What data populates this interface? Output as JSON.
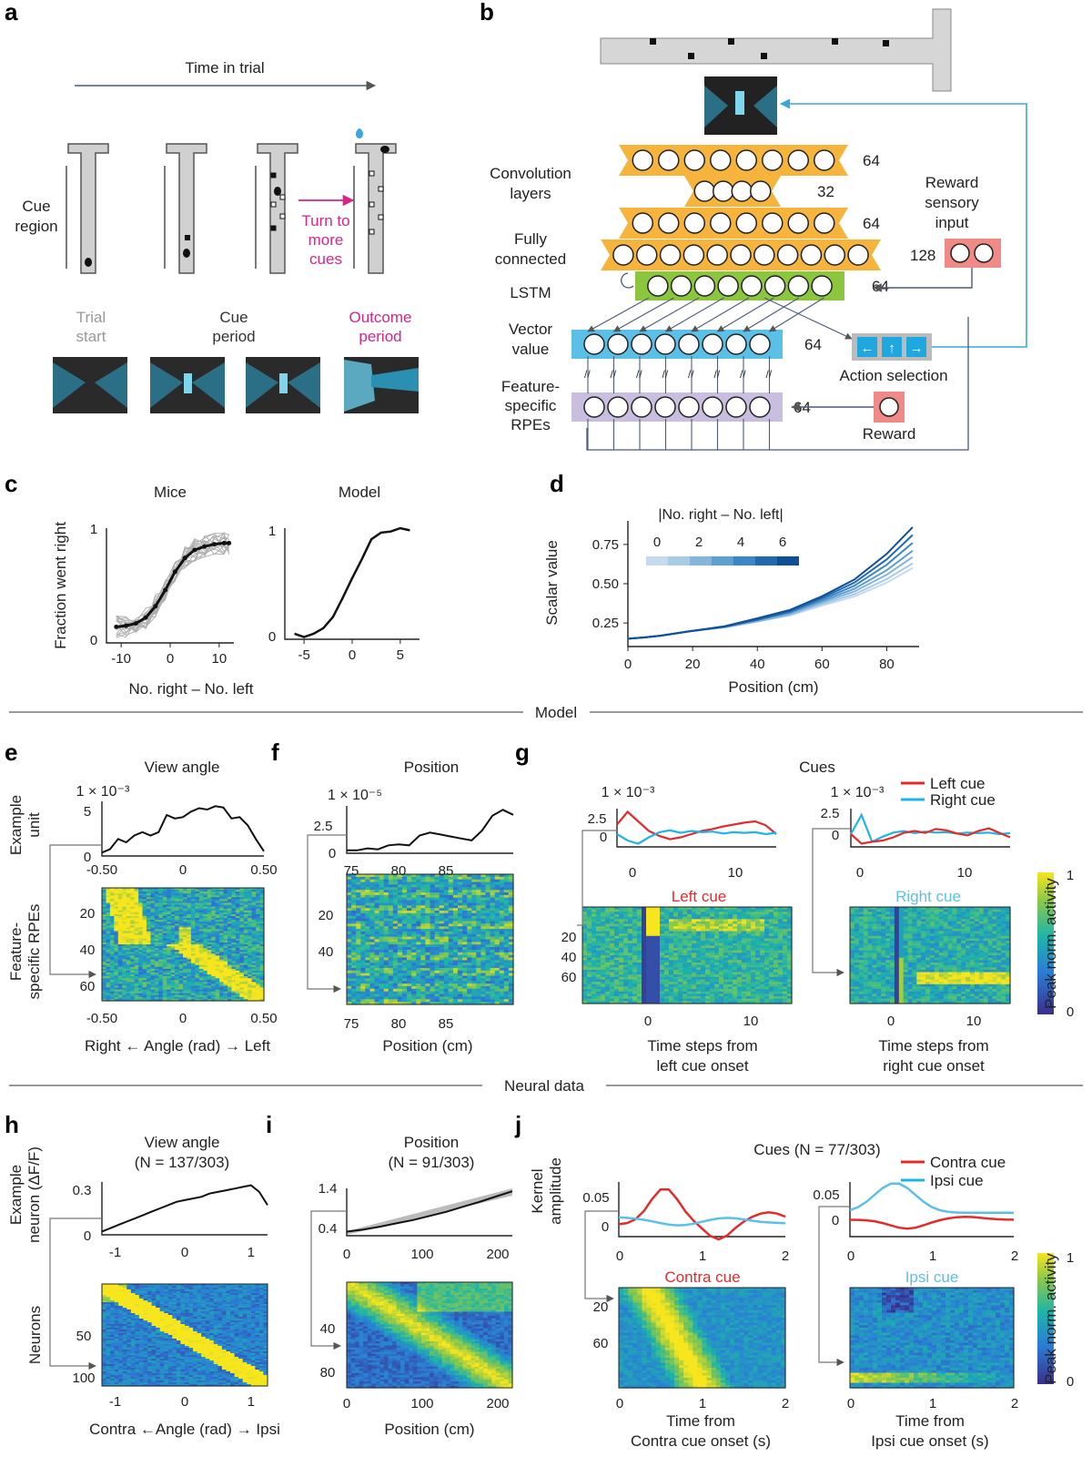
{
  "panel_letters": [
    "a",
    "b",
    "c",
    "d",
    "e",
    "f",
    "g",
    "h",
    "i",
    "j"
  ],
  "panel_a": {
    "time_label": "Time in trial",
    "cue_region": "Cue\nregion",
    "turn_label": "Turn to\nmore\ncues",
    "phases": [
      "Trial\nstart",
      "Cue\nperiod",
      "Outcome\nperiod"
    ]
  },
  "panel_b": {
    "conv_label": "Convolution\nlayers",
    "fc_label": "Fully\nconnected",
    "lstm_label": "LSTM",
    "vector_label": "Vector\nvalue",
    "rpe_label": "Feature-\nspecific\nRPEs",
    "reward_sensory": "Reward\nsensory\ninput",
    "action_label": "Action selection",
    "reward_label": "Reward",
    "layers": [
      {
        "name": "conv1",
        "nodes": 8,
        "size": "64"
      },
      {
        "name": "conv2",
        "nodes": 4,
        "size": "32"
      },
      {
        "name": "conv3",
        "nodes": 8,
        "size": "64"
      },
      {
        "name": "fc",
        "nodes": 11,
        "size": "128"
      },
      {
        "name": "lstm",
        "nodes": 8,
        "size": "64"
      },
      {
        "name": "vector",
        "nodes": 8,
        "size": "64"
      },
      {
        "name": "rpe",
        "nodes": 8,
        "size": "64"
      }
    ],
    "actions": [
      "←",
      "↑",
      "→"
    ]
  },
  "section_labels": {
    "model": "Model",
    "neural": "Neural data"
  },
  "chart_data": [
    {
      "panel": "c",
      "type": "line",
      "title": "Mice",
      "xlabel": "No. right – No. left",
      "ylabel": "Fraction went right",
      "x": [
        -11,
        -9,
        -7,
        -5,
        -3,
        -1,
        1,
        3,
        5,
        7,
        9,
        11,
        12
      ],
      "values": [
        0.14,
        0.15,
        0.17,
        0.22,
        0.32,
        0.46,
        0.62,
        0.74,
        0.81,
        0.84,
        0.86,
        0.87,
        0.87
      ],
      "xticks": [
        "-10",
        "0",
        "10"
      ],
      "yticks": [
        "0",
        "1"
      ],
      "ylim": [
        0,
        1
      ]
    },
    {
      "panel": "c2",
      "type": "line",
      "title": "Model",
      "x": [
        -6,
        -5,
        -4,
        -3,
        -2,
        -1,
        0,
        1,
        2,
        3,
        4,
        5,
        6
      ],
      "values": [
        0.05,
        0.02,
        0.05,
        0.1,
        0.2,
        0.37,
        0.55,
        0.72,
        0.9,
        0.96,
        0.97,
        1.0,
        0.98
      ],
      "xticks": [
        "-5",
        "0",
        "5"
      ],
      "yticks": [
        "0",
        "1"
      ],
      "ylim": [
        0,
        1
      ]
    },
    {
      "panel": "d",
      "type": "line",
      "xlabel": "Position (cm)",
      "ylabel": "Scalar value",
      "legend_title": "|No. right – No. left|",
      "legend_ticks": [
        "0",
        "2",
        "4",
        "6"
      ],
      "xticks": [
        "0",
        "20",
        "40",
        "60",
        "80"
      ],
      "yticks": [
        "0.25",
        "0.50",
        "0.75"
      ],
      "xlim": [
        0,
        90
      ],
      "ylim": [
        0.1,
        0.9
      ],
      "series": [
        {
          "name": "0",
          "values": [
            0.15,
            0.2,
            0.26,
            0.36,
            0.6
          ]
        },
        {
          "name": "1",
          "values": [
            0.15,
            0.2,
            0.26,
            0.37,
            0.63
          ]
        },
        {
          "name": "2",
          "values": [
            0.15,
            0.2,
            0.26,
            0.38,
            0.67
          ]
        },
        {
          "name": "3",
          "values": [
            0.15,
            0.2,
            0.27,
            0.39,
            0.71
          ]
        },
        {
          "name": "4",
          "values": [
            0.15,
            0.2,
            0.27,
            0.4,
            0.76
          ]
        },
        {
          "name": "5",
          "values": [
            0.15,
            0.2,
            0.27,
            0.41,
            0.81
          ]
        },
        {
          "name": "6",
          "values": [
            0.15,
            0.2,
            0.28,
            0.42,
            0.86
          ]
        }
      ],
      "x": [
        0,
        20,
        40,
        60,
        88
      ]
    },
    {
      "panel": "e",
      "type": "heatmap",
      "title": "View angle",
      "scale": "1 × 10⁻³",
      "ylabel_top": "Example\nunit",
      "ylabel_bottom": "Feature-\nspecific RPEs",
      "xlabel": "Right ← Angle (rad) → Left",
      "xticks": [
        "-0.50",
        "0",
        "0.50"
      ],
      "yticks_top": [
        "0",
        "5"
      ],
      "yticks_bottom": [
        "20",
        "40",
        "60"
      ]
    },
    {
      "panel": "f",
      "type": "heatmap",
      "title": "Position",
      "scale": "1 × 10⁻⁵",
      "xlabel": "Position (cm)",
      "xticks": [
        "75",
        "80",
        "85"
      ],
      "yticks_top": [
        "0",
        "2.5"
      ],
      "yticks_bottom": [
        "20",
        "40"
      ]
    },
    {
      "panel": "g",
      "type": "heatmap",
      "title": "Cues",
      "scale": "1 × 10⁻³",
      "legend": [
        "Left cue",
        "Right cue"
      ],
      "sub1": "Left cue",
      "sub2": "Right cue",
      "xlabel1": "Time steps from\nleft cue onset",
      "xlabel2": "Time steps from\nright cue onset",
      "xticks": [
        "0",
        "10"
      ],
      "yticks_top": [
        "0",
        "2.5"
      ],
      "yticks_bottom": [
        "20",
        "40",
        "60"
      ],
      "colorbar_label": "Peak norm. activity",
      "colorbar_ticks": [
        "0",
        "1"
      ]
    },
    {
      "panel": "h",
      "type": "heatmap",
      "title": "View angle\n(N = 137/303)",
      "ylabel_top": "Example\nneuron (ΔF/F)",
      "ylabel_bottom": "Neurons",
      "xlabel": "Contra ←Angle (rad) → Ipsi",
      "xticks": [
        "-1",
        "0",
        "1"
      ],
      "yticks_top": [
        "0",
        "0.3"
      ],
      "yticks_bottom": [
        "50",
        "100"
      ]
    },
    {
      "panel": "i",
      "type": "heatmap",
      "title": "Position\n(N = 91/303)",
      "xlabel": "Position (cm)",
      "xticks": [
        "0",
        "100",
        "200"
      ],
      "yticks_top": [
        "0.4",
        "1.4"
      ],
      "yticks_bottom": [
        "40",
        "80"
      ]
    },
    {
      "panel": "j",
      "type": "heatmap",
      "title": "Cues (N = 77/303)",
      "ylabel_top": "Kernel\namplitude",
      "legend": [
        "Contra cue",
        "Ipsi cue"
      ],
      "sub1": "Contra cue",
      "sub2": "Ipsi cue",
      "xlabel1": "Time from\nContra cue onset (s)",
      "xlabel2": "Time from\nIpsi cue onset (s)",
      "xticks": [
        "0",
        "1",
        "2"
      ],
      "yticks_top": [
        "0",
        "0.05"
      ],
      "yticks_bottom": [
        "20",
        "60"
      ],
      "colorbar_label": "Peak norm. activity",
      "colorbar_ticks": [
        "0",
        "1"
      ]
    }
  ],
  "colors": {
    "teal": "#2a6f86",
    "orange": "#f6b43c",
    "green": "#8cc63f",
    "blue": "#5bc0e8",
    "purple": "#c9bde0",
    "red": "#e32b2b",
    "cyan": "#1fb4e8",
    "magenta": "#d6258a",
    "pink": "#f08a86"
  }
}
